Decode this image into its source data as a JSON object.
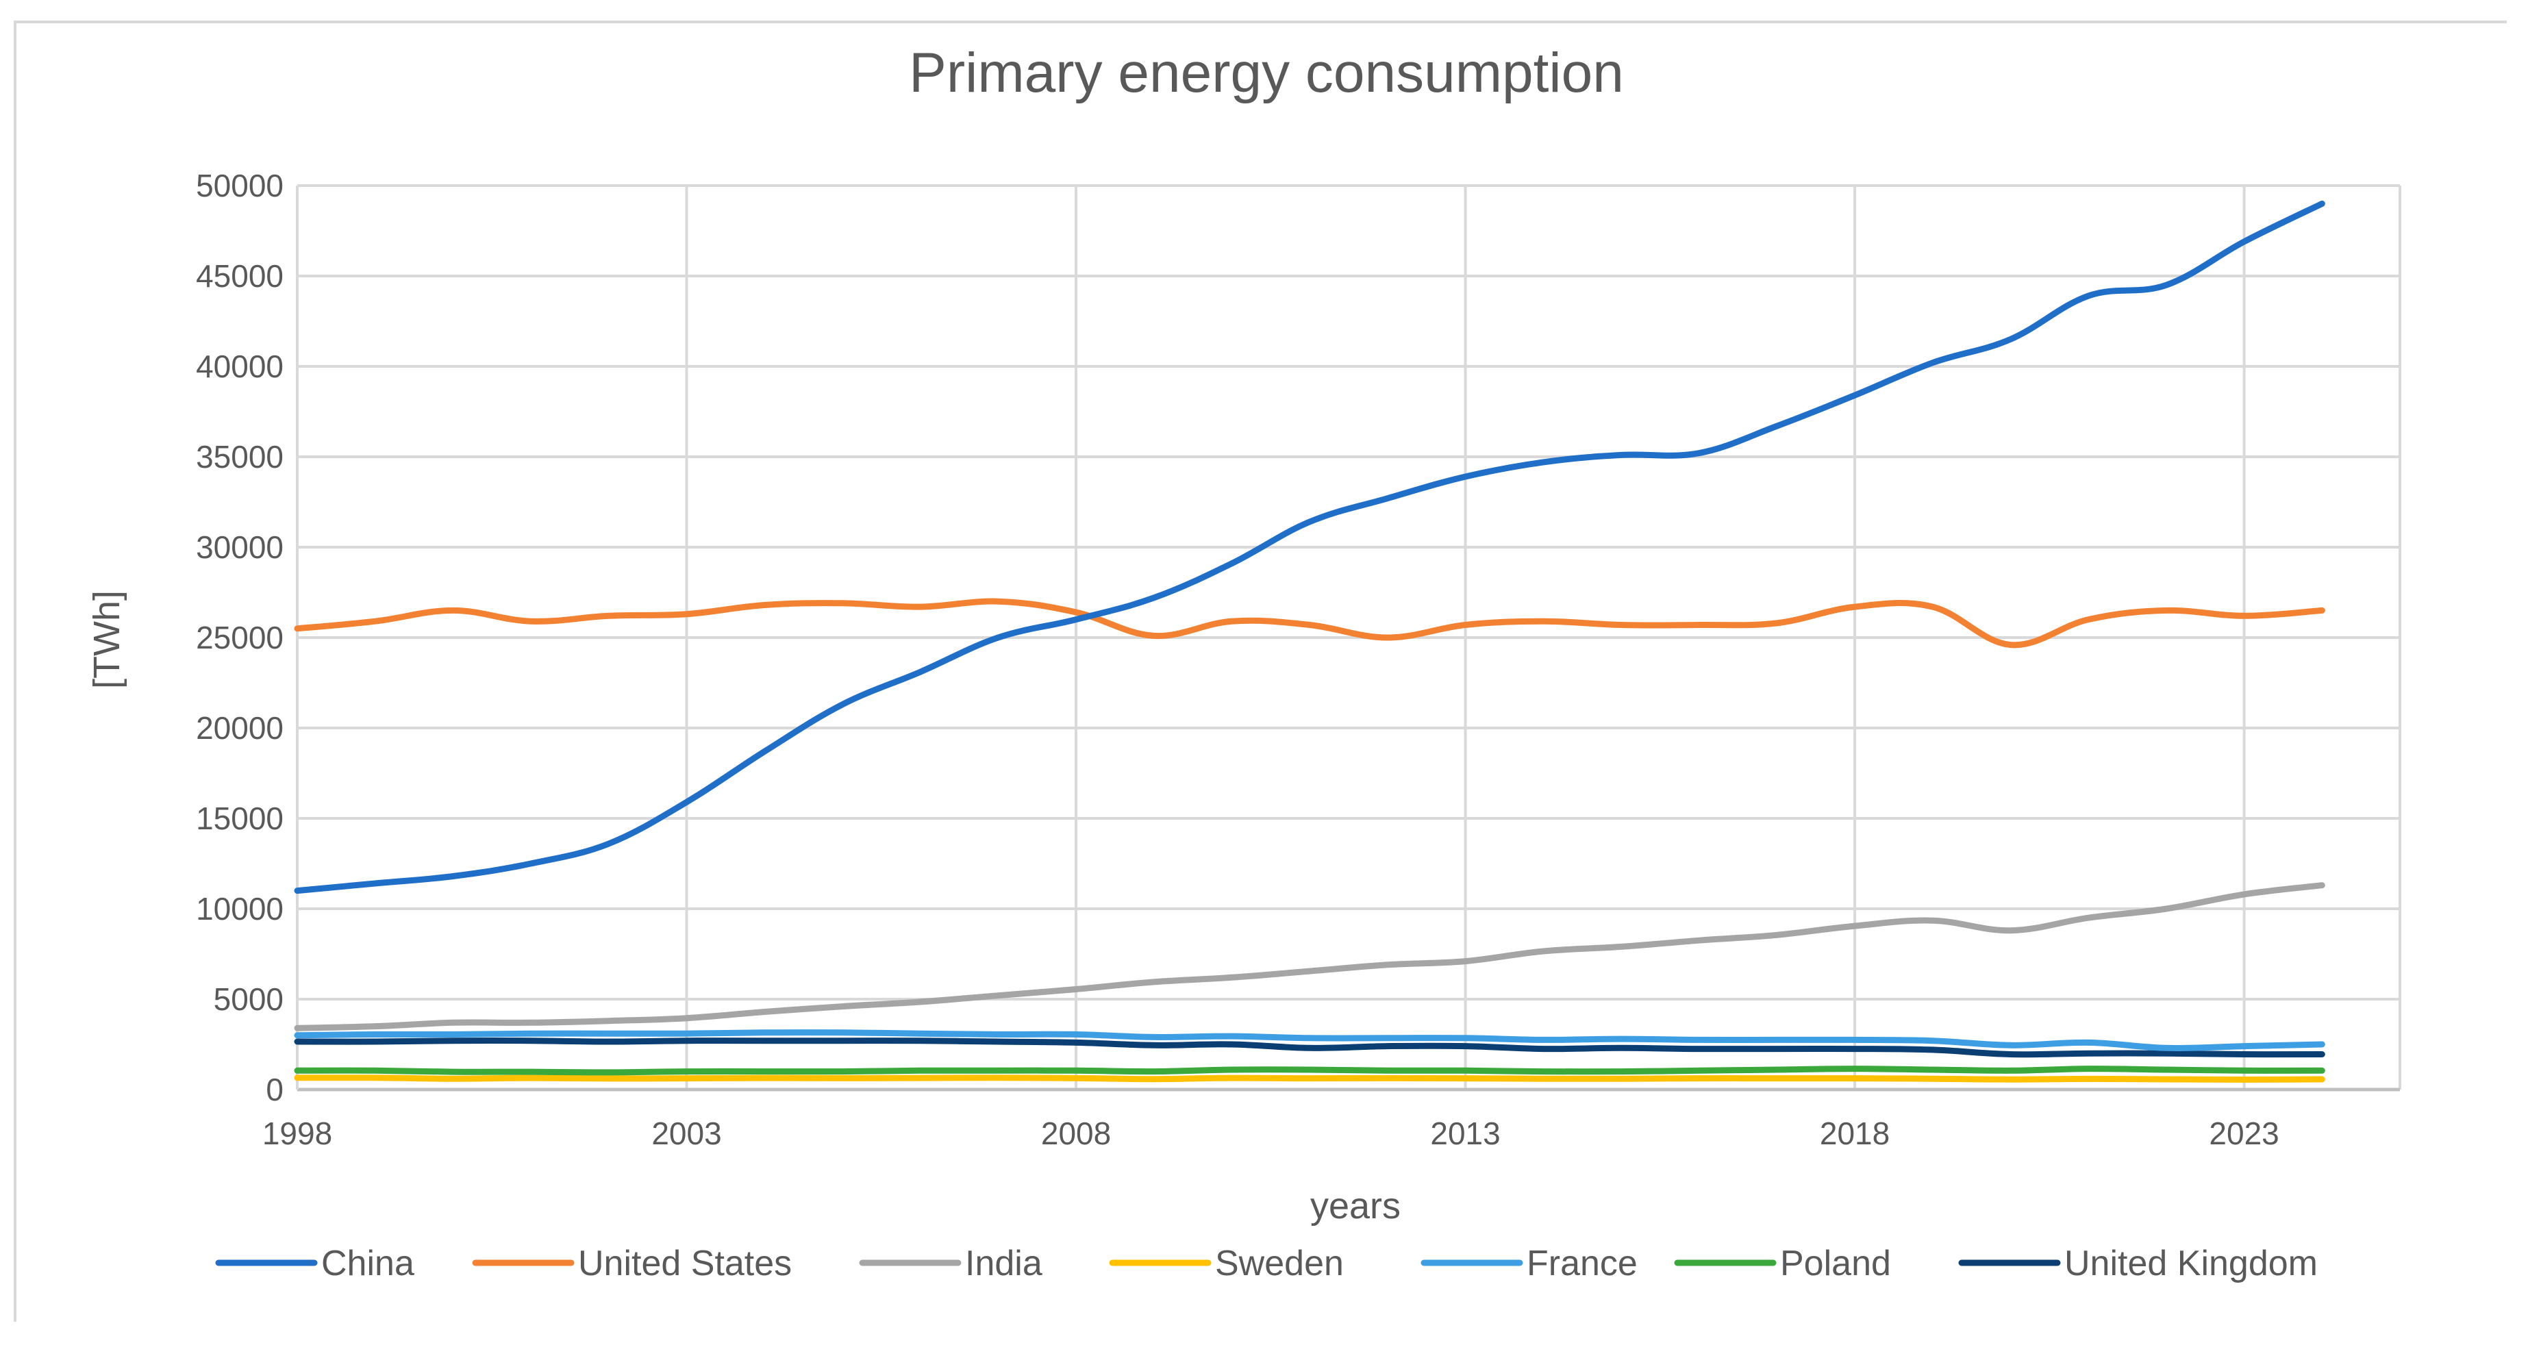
{
  "chart_data": {
    "type": "line",
    "title": "Primary energy consumption",
    "xlabel": "years",
    "ylabel": "[TWh]",
    "x": [
      1998,
      1999,
      2000,
      2001,
      2002,
      2003,
      2004,
      2005,
      2006,
      2007,
      2008,
      2009,
      2010,
      2011,
      2012,
      2013,
      2014,
      2015,
      2016,
      2017,
      2018,
      2019,
      2020,
      2021,
      2022,
      2023,
      2024
    ],
    "xticks": [
      1998,
      2003,
      2008,
      2013,
      2018,
      2023
    ],
    "xlim": [
      1998,
      2025
    ],
    "ylim": [
      0,
      50000
    ],
    "yticks": [
      0,
      5000,
      10000,
      15000,
      20000,
      25000,
      30000,
      35000,
      40000,
      45000,
      50000
    ],
    "ytick_labels": [
      "0",
      "5000",
      "10000",
      "15000",
      "20000",
      "25000",
      "30000",
      "35000",
      "40000",
      "45000",
      "50000"
    ],
    "grid": true,
    "legend_position": "bottom",
    "series": [
      {
        "name": "China",
        "color": "#1f6fc9",
        "values": [
          11000,
          11400,
          11800,
          12500,
          13600,
          15900,
          18700,
          21300,
          23100,
          25000,
          26000,
          27200,
          29100,
          31400,
          32700,
          33900,
          34700,
          35100,
          35200,
          36700,
          38400,
          40200,
          41500,
          43900,
          44500,
          46900,
          49000
        ]
      },
      {
        "name": "United States",
        "color": "#f28131",
        "values": [
          25500,
          25900,
          26500,
          25900,
          26200,
          26300,
          26800,
          26900,
          26700,
          27000,
          26400,
          25100,
          25900,
          25700,
          25000,
          25700,
          25900,
          25700,
          25700,
          25800,
          26700,
          26700,
          24600,
          26000,
          26500,
          26200,
          26500
        ]
      },
      {
        "name": "India",
        "color": "#a5a5a5",
        "values": [
          3400,
          3500,
          3700,
          3700,
          3800,
          3950,
          4300,
          4600,
          4850,
          5200,
          5550,
          5950,
          6200,
          6550,
          6900,
          7100,
          7650,
          7900,
          8250,
          8550,
          9050,
          9350,
          8800,
          9500,
          10000,
          10800,
          11300
        ]
      },
      {
        "name": "Sweden",
        "color": "#ffc000",
        "values": [
          650,
          650,
          600,
          640,
          610,
          620,
          640,
          630,
          640,
          650,
          630,
          580,
          640,
          620,
          630,
          620,
          600,
          600,
          620,
          620,
          620,
          600,
          560,
          590,
          570,
          550,
          570
        ]
      },
      {
        "name": "France",
        "color": "#3d9ee4",
        "values": [
          3000,
          3050,
          3050,
          3100,
          3100,
          3100,
          3150,
          3150,
          3100,
          3050,
          3050,
          2900,
          2950,
          2850,
          2850,
          2850,
          2750,
          2800,
          2750,
          2750,
          2750,
          2700,
          2450,
          2600,
          2300,
          2400,
          2500
        ]
      },
      {
        "name": "Poland",
        "color": "#3aa83a",
        "values": [
          1050,
          1050,
          980,
          980,
          950,
          1000,
          1000,
          1000,
          1050,
          1050,
          1050,
          1000,
          1100,
          1100,
          1050,
          1050,
          1000,
          1000,
          1050,
          1100,
          1150,
          1100,
          1050,
          1150,
          1100,
          1050,
          1050
        ]
      },
      {
        "name": "United Kingdom",
        "color": "#0b3f74",
        "values": [
          2650,
          2650,
          2700,
          2700,
          2650,
          2700,
          2700,
          2700,
          2700,
          2650,
          2600,
          2450,
          2500,
          2300,
          2400,
          2400,
          2250,
          2300,
          2250,
          2250,
          2250,
          2200,
          1950,
          2000,
          2000,
          1950,
          1950
        ]
      }
    ]
  }
}
